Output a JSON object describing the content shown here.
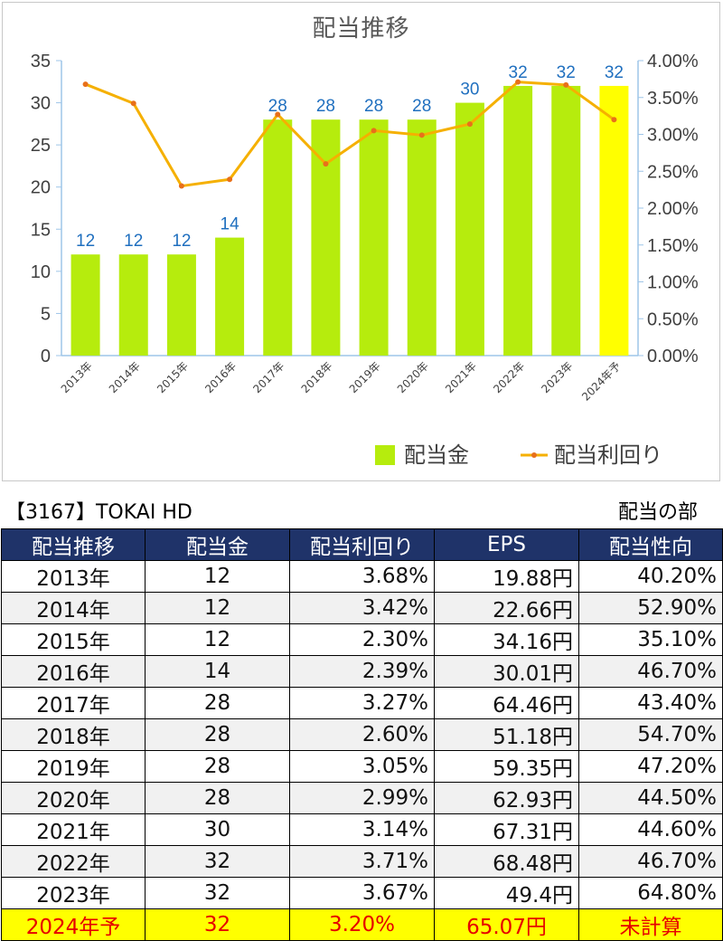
{
  "chart_data": {
    "type": "bar",
    "title": "配当推移",
    "categories": [
      "2013年",
      "2014年",
      "2015年",
      "2016年",
      "2017年",
      "2018年",
      "2019年",
      "2020年",
      "2021年",
      "2022年",
      "2023年",
      "2024年予"
    ],
    "series": [
      {
        "name": "配当金",
        "type": "bar",
        "axis": "left",
        "values": [
          12,
          12,
          12,
          14,
          28,
          28,
          28,
          28,
          30,
          32,
          32,
          32
        ],
        "color": "#b6ec0d",
        "highlight_color": "#ffff00",
        "highlight_index": 11
      },
      {
        "name": "配当利回り",
        "type": "line",
        "axis": "right",
        "values": [
          3.68,
          3.42,
          2.3,
          2.39,
          3.27,
          2.6,
          3.05,
          2.99,
          3.14,
          3.71,
          3.67,
          3.2
        ],
        "color": "#f5b000"
      }
    ],
    "y_left": {
      "min": 0,
      "max": 35,
      "ticks": [
        "0",
        "5",
        "10",
        "15",
        "20",
        "25",
        "30",
        "35"
      ]
    },
    "y_right": {
      "min": 0,
      "max": 4,
      "ticks": [
        "0.00%",
        "0.50%",
        "1.00%",
        "1.50%",
        "2.00%",
        "2.50%",
        "3.00%",
        "3.50%",
        "4.00%"
      ]
    },
    "data_labels": [
      "12",
      "12",
      "12",
      "14",
      "28",
      "28",
      "28",
      "28",
      "30",
      "32",
      "32",
      "32"
    ],
    "data_label_color": "#1f6fbf",
    "legend": "bottom-right",
    "grid": false
  },
  "caption": {
    "left": "【3167】TOKAI HD",
    "right": "配当の部"
  },
  "table": {
    "headers": [
      "配当推移",
      "配当金",
      "配当利回り",
      "EPS",
      "配当性向"
    ],
    "rows": [
      [
        "2013年",
        "12",
        "3.68%",
        "19.88円",
        "40.20%"
      ],
      [
        "2014年",
        "12",
        "3.42%",
        "22.66円",
        "52.90%"
      ],
      [
        "2015年",
        "12",
        "2.30%",
        "34.16円",
        "35.10%"
      ],
      [
        "2016年",
        "14",
        "2.39%",
        "30.01円",
        "46.70%"
      ],
      [
        "2017年",
        "28",
        "3.27%",
        "64.46円",
        "43.40%"
      ],
      [
        "2018年",
        "28",
        "2.60%",
        "51.18円",
        "54.70%"
      ],
      [
        "2019年",
        "28",
        "3.05%",
        "59.35円",
        "47.20%"
      ],
      [
        "2020年",
        "28",
        "2.99%",
        "62.93円",
        "44.50%"
      ],
      [
        "2021年",
        "30",
        "3.14%",
        "67.31円",
        "44.60%"
      ],
      [
        "2022年",
        "32",
        "3.71%",
        "68.48円",
        "46.70%"
      ],
      [
        "2023年",
        "32",
        "3.67%",
        "49.4円",
        "64.80%"
      ],
      [
        "2024年予",
        "32",
        "3.20%",
        "65.07円",
        "未計算"
      ]
    ],
    "header_color": "#1f3369",
    "forecast_row_color": "#ffff00",
    "forecast_text_color": "#e60000"
  }
}
